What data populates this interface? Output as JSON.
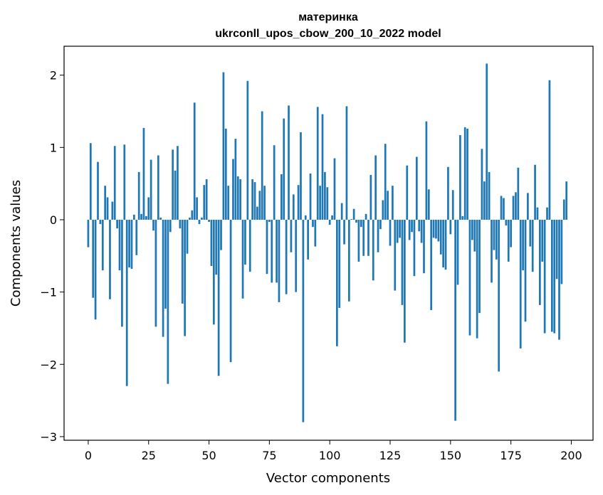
{
  "chart_data": {
    "type": "bar",
    "title": "материнка",
    "subtitle": "ukrconll_upos_cbow_200_10_2022 model",
    "xlabel": "Vector components",
    "ylabel": "Components values",
    "xlim": [
      -10,
      209
    ],
    "ylim": [
      -3.05,
      2.4
    ],
    "xticks": [
      0,
      25,
      50,
      75,
      100,
      125,
      150,
      175,
      200
    ],
    "yticks": [
      -3,
      -2,
      -1,
      0,
      1,
      2
    ],
    "xtick_labels": [
      "0",
      "25",
      "50",
      "75",
      "100",
      "125",
      "150",
      "175",
      "200"
    ],
    "ytick_labels": [
      "−3",
      "−2",
      "−1",
      "0",
      "1",
      "2"
    ],
    "bar_color": "#1f77b4",
    "values": [
      -0.38,
      1.06,
      -1.08,
      -1.38,
      0.8,
      -0.06,
      -0.7,
      0.47,
      0.31,
      -1.1,
      0.25,
      1.02,
      -0.12,
      -0.7,
      -1.48,
      1.04,
      -2.3,
      -0.66,
      -0.68,
      0.07,
      -0.49,
      0.66,
      0.08,
      1.27,
      0.05,
      0.31,
      0.83,
      -0.15,
      -1.48,
      0.89,
      0.03,
      -1.62,
      -1.23,
      -2.27,
      -0.17,
      0.97,
      0.68,
      1.02,
      -0.12,
      -1.16,
      -1.61,
      -0.47,
      0.03,
      0.13,
      1.62,
      0.31,
      -0.06,
      0.03,
      0.48,
      0.56,
      -0.03,
      -0.64,
      -1.45,
      -0.76,
      -2.16,
      -0.42,
      2.04,
      1.26,
      0.47,
      -1.97,
      0.84,
      1.12,
      0.6,
      0.56,
      -1.09,
      -0.62,
      1.92,
      -0.72,
      0.56,
      0.52,
      0.18,
      0.4,
      1.5,
      0.47,
      -0.75,
      -0.03,
      -0.87,
      1.03,
      -0.87,
      -1.14,
      0.63,
      1.4,
      -1.03,
      1.58,
      -0.45,
      0.35,
      -1.0,
      0.48,
      1.21,
      -2.8,
      0.06,
      -0.55,
      0.64,
      -0.1,
      -0.37,
      1.56,
      0.47,
      1.46,
      0.66,
      0.45,
      -0.07,
      0.06,
      0.85,
      -1.75,
      -1.22,
      0.23,
      -0.34,
      1.57,
      -1.13,
      0.01,
      0.15,
      -0.04,
      -0.58,
      -0.1,
      -0.5,
      0.08,
      -0.5,
      0.62,
      -0.84,
      0.89,
      -0.45,
      -0.13,
      0.27,
      1.05,
      0.4,
      -0.36,
      0.47,
      -0.98,
      -0.32,
      -0.25,
      -1.18,
      -1.7,
      0.75,
      -0.28,
      -0.17,
      -0.78,
      0.87,
      -0.16,
      -0.32,
      -0.74,
      1.36,
      0.42,
      -1.25,
      -0.25,
      -0.26,
      -0.3,
      -0.48,
      -0.66,
      -0.69,
      0.73,
      -0.2,
      0.41,
      -2.78,
      -0.9,
      1.17,
      0.05,
      1.28,
      1.26,
      -1.6,
      -0.28,
      -0.44,
      -1.64,
      -1.29,
      0.98,
      0.53,
      2.16,
      0.66,
      -0.87,
      -0.42,
      -0.55,
      -2.1,
      0.33,
      0.3,
      -0.08,
      -0.58,
      -0.38,
      0.33,
      0.38,
      0.72,
      -1.78,
      -0.7,
      -1.41,
      0.37,
      -0.37,
      -0.72,
      0.76,
      0.17,
      -1.18,
      -0.58,
      -1.57,
      0.17,
      1.93,
      -1.55,
      -1.57,
      -0.82,
      -1.66,
      -0.89,
      0.28,
      0.53
    ]
  }
}
